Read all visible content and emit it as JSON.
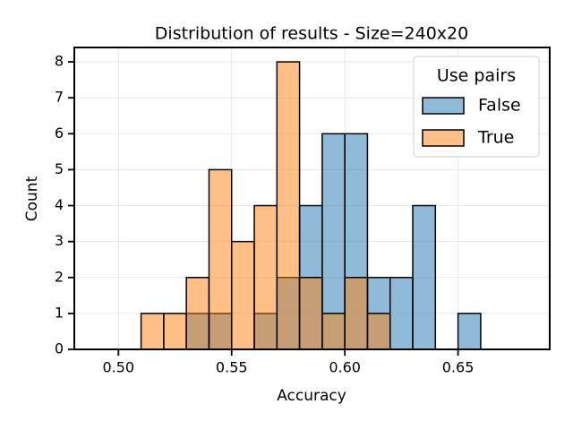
{
  "chart_data": {
    "type": "histogram",
    "title": "Distribution of results - Size=240x20",
    "xlabel": "Accuracy",
    "ylabel": "Count",
    "bins": [
      0.49,
      0.5,
      0.51,
      0.52,
      0.53,
      0.54,
      0.55,
      0.56,
      0.57,
      0.58,
      0.59,
      0.6,
      0.61,
      0.62,
      0.63,
      0.64,
      0.65,
      0.66,
      0.67,
      0.68
    ],
    "series": [
      {
        "name": "False",
        "color": "#1f77b4",
        "values": [
          0,
          0,
          0,
          0,
          1,
          1,
          0,
          1,
          2,
          4,
          6,
          6,
          2,
          2,
          4,
          0,
          1,
          0,
          0
        ]
      },
      {
        "name": "True",
        "color": "#ff7f0e",
        "values": [
          0,
          0,
          1,
          1,
          2,
          5,
          3,
          4,
          8,
          2,
          1,
          2,
          1,
          0,
          0,
          0,
          0,
          0,
          0
        ]
      }
    ],
    "legend_title": "Use pairs",
    "legend": "upper right",
    "grid": true,
    "xlim": [
      0.4805,
      0.6905
    ],
    "xticks": [
      {
        "value": 0.5,
        "label": "0.50"
      },
      {
        "value": 0.55,
        "label": "0.55"
      },
      {
        "value": 0.6,
        "label": "0.60"
      },
      {
        "value": 0.65,
        "label": "0.65"
      }
    ],
    "ylim": [
      0,
      8.4
    ],
    "yticks": [
      0,
      1,
      2,
      3,
      4,
      5,
      6,
      7,
      8
    ]
  }
}
